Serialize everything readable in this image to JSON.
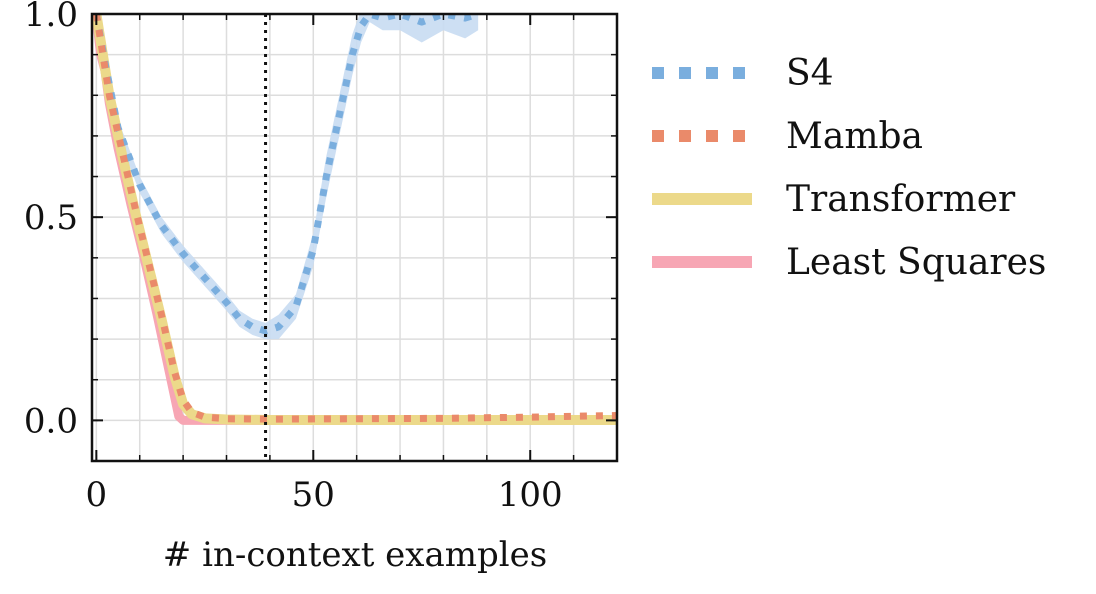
{
  "chart_data": {
    "type": "line",
    "xlabel": "# in-context examples",
    "ylabel": "",
    "xlim": [
      -1,
      120
    ],
    "ylim": [
      -0.1,
      1.0
    ],
    "x_ticks": [
      0,
      50,
      100
    ],
    "x_tick_labels": [
      "0",
      "50",
      "100"
    ],
    "y_ticks": [
      0.0,
      0.5,
      1.0
    ],
    "y_tick_labels": [
      "0.0",
      "0.5",
      "1.0"
    ],
    "x_minor_step": 10,
    "y_minor_step": 0.1,
    "grid": true,
    "legend_position": "outside-right",
    "vline_x": 39,
    "series": [
      {
        "name": "S4",
        "style": "dotted",
        "color": "#7aaede",
        "band_color": "#c8dcf2",
        "x": [
          0,
          2,
          5,
          10,
          15,
          20,
          25,
          30,
          33,
          36,
          39,
          42,
          46,
          50,
          53,
          56,
          59,
          61,
          63,
          66,
          70,
          75,
          80,
          85,
          88
        ],
        "y": [
          1.0,
          0.88,
          0.72,
          0.58,
          0.48,
          0.41,
          0.35,
          0.29,
          0.25,
          0.23,
          0.22,
          0.23,
          0.28,
          0.42,
          0.6,
          0.75,
          0.9,
          0.97,
          1.0,
          0.99,
          1.0,
          0.98,
          1.0,
          0.99,
          1.0
        ],
        "band": [
          0.01,
          0.02,
          0.02,
          0.02,
          0.02,
          0.02,
          0.02,
          0.02,
          0.02,
          0.02,
          0.02,
          0.03,
          0.03,
          0.04,
          0.05,
          0.05,
          0.05,
          0.04,
          0.02,
          0.03,
          0.04,
          0.05,
          0.04,
          0.05,
          0.04
        ]
      },
      {
        "name": "Mamba",
        "style": "dotted",
        "color": "#ea8a6a",
        "x": [
          0,
          3,
          6,
          9,
          12,
          15,
          18,
          20,
          22,
          25,
          30,
          40,
          60,
          80,
          100,
          110,
          120
        ],
        "y": [
          1.0,
          0.8,
          0.66,
          0.52,
          0.39,
          0.26,
          0.12,
          0.05,
          0.02,
          0.008,
          0.004,
          0.003,
          0.004,
          0.005,
          0.008,
          0.01,
          0.012
        ]
      },
      {
        "name": "Transformer",
        "style": "solid",
        "color": "#ecd98a",
        "x": [
          0,
          3,
          6,
          9,
          12,
          15,
          18,
          20,
          22,
          25,
          30,
          40,
          60,
          80,
          100,
          120
        ],
        "y": [
          1.0,
          0.8,
          0.65,
          0.51,
          0.38,
          0.25,
          0.11,
          0.04,
          0.015,
          0.005,
          0.002,
          0.001,
          0.001,
          0.001,
          0.001,
          0.001
        ]
      },
      {
        "name": "Least Squares",
        "style": "solid",
        "color": "#f7a6b4",
        "x": [
          0,
          1,
          2,
          3,
          5,
          8,
          11,
          14,
          17,
          19,
          20,
          30,
          60,
          90,
          120
        ],
        "y": [
          0.99,
          0.9,
          0.86,
          0.78,
          0.67,
          0.53,
          0.4,
          0.26,
          0.11,
          0.01,
          0.0,
          0.0,
          0.0,
          0.0,
          0.0
        ]
      }
    ]
  }
}
